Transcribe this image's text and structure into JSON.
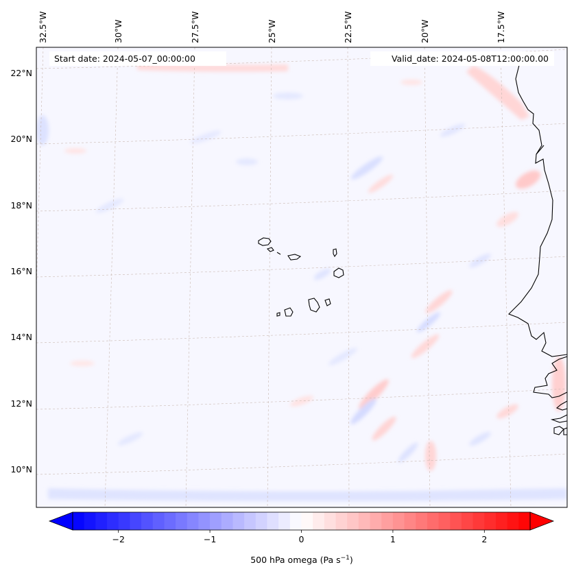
{
  "header": {
    "start_date": "Start date: 2024-05-07_00:00:00",
    "valid_date": "Valid_date: 2024-05-08T12:00:00.00"
  },
  "map": {
    "projection": "lambert-conformal",
    "lon_labels": [
      "32.5°W",
      "30°W",
      "27.5°W",
      "25°W",
      "22.5°W",
      "20°W",
      "17.5°W"
    ],
    "lat_labels": [
      "22°N",
      "20°N",
      "18°N",
      "16°N",
      "14°N",
      "12°N",
      "10°N"
    ],
    "features": [
      "coastline",
      "cape-verde-islands",
      "west-african-coast"
    ],
    "gridlines": true,
    "gridline_color": "#c9b8b0"
  },
  "colorbar": {
    "label": "500 hPa omega (Pa s",
    "label_superscript": "−1",
    "label_close": ")",
    "ticks": [
      "−2",
      "−1",
      "0",
      "1",
      "2"
    ],
    "tick_values": [
      -2,
      -1,
      0,
      1,
      2
    ],
    "range": [
      -2.5,
      2.5
    ],
    "colormap": "bwr",
    "extend": "both",
    "low_color": "#0000ff",
    "high_color": "#ff0000"
  }
}
